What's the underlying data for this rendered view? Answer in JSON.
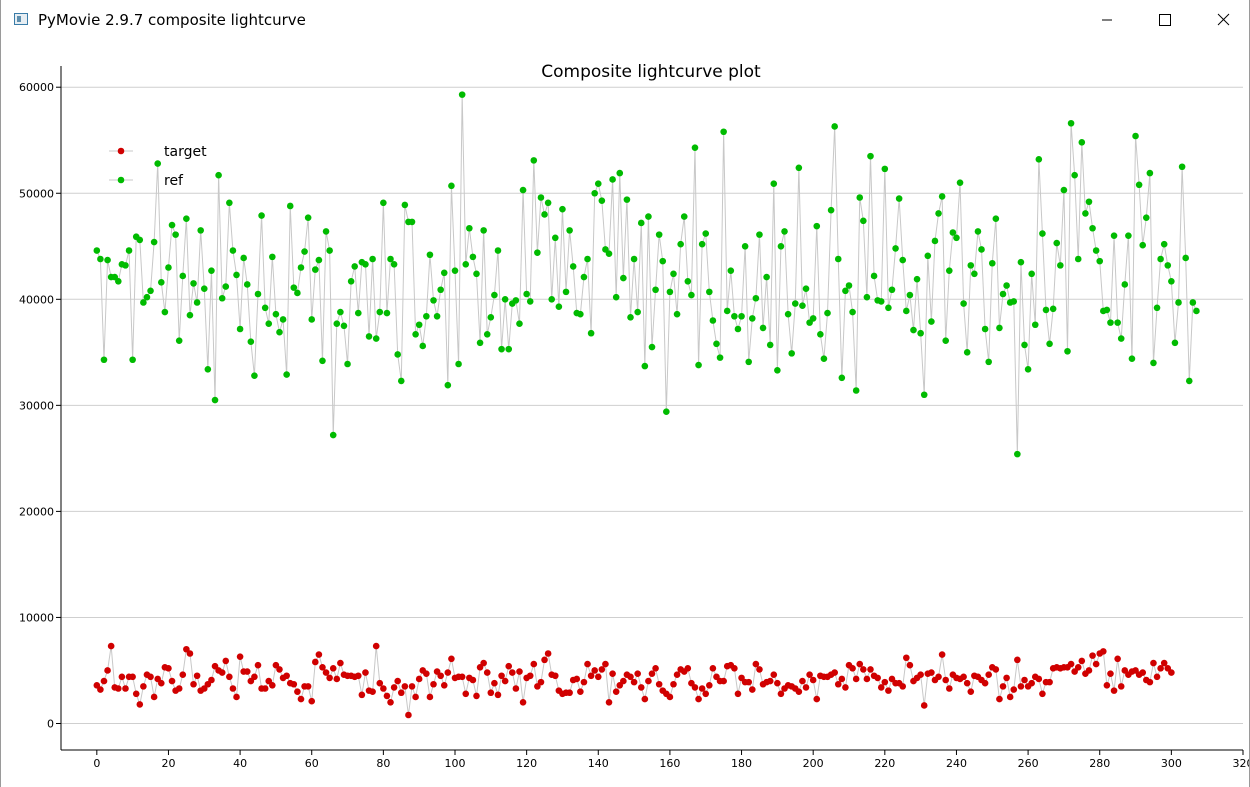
{
  "window": {
    "title": "PyMovie 2.9.7 composite lightcurve",
    "icons": {
      "app": "app-window-icon",
      "minimize": "minimize-icon",
      "maximize": "maximize-icon",
      "close": "close-icon"
    }
  },
  "chart_data": {
    "type": "scatter",
    "title": "Composite lightcurve plot",
    "xlabel": "",
    "ylabel": "",
    "xlim": [
      -10,
      320
    ],
    "ylim": [
      -2500,
      62000
    ],
    "x_ticks": [
      0,
      20,
      40,
      60,
      80,
      100,
      120,
      140,
      160,
      180,
      200,
      220,
      240,
      260,
      280,
      300,
      320
    ],
    "y_ticks": [
      0,
      10000,
      20000,
      30000,
      40000,
      50000,
      60000
    ],
    "grid": "horizontal",
    "legend_position": "top-left",
    "connect_points": true,
    "line_color": "#c8c8c8",
    "series": [
      {
        "name": "target",
        "color": "#d00000",
        "values": [
          3600,
          3200,
          4000,
          5000,
          7300,
          3400,
          3300,
          4400,
          3300,
          4400,
          4400,
          2800,
          1800,
          3500,
          4600,
          4400,
          2500,
          4200,
          3800,
          5300,
          5200,
          4000,
          3100,
          3300,
          4600,
          7000,
          6600,
          3700,
          4500,
          3100,
          3300,
          3700,
          4100,
          5400,
          5000,
          4800,
          5900,
          4400,
          3300,
          2500,
          6300,
          4900,
          4900,
          4000,
          4400,
          5500,
          3300,
          3300,
          4000,
          3600,
          5500,
          5100,
          4300,
          4500,
          3800,
          3700,
          3000,
          2300,
          3500,
          3500,
          2100,
          5800,
          6500,
          5300,
          4800,
          4300,
          5200,
          4200,
          5700,
          4600,
          4500,
          4500,
          4400,
          4500,
          2700,
          4800,
          3100,
          3000,
          7300,
          3800,
          3300,
          2600,
          2000,
          3400,
          4000,
          2900,
          3500,
          800,
          3500,
          2500,
          4200,
          5000,
          4700,
          2500,
          3700,
          4900,
          4500,
          3600,
          4800,
          6100,
          4300,
          4400,
          4400,
          2800,
          4300,
          4100,
          2600,
          5300,
          5700,
          4800,
          2900,
          3800,
          2700,
          4500,
          4000,
          5400,
          4800,
          3300,
          4900,
          2000,
          4300,
          4500,
          5600,
          3500,
          3900,
          6000,
          6600,
          4600,
          4500,
          3100,
          2800,
          2900,
          2900,
          4100,
          4200,
          3000,
          3900,
          5600,
          4500,
          5000,
          4400,
          5100,
          5600,
          2000,
          4700,
          3000,
          3600,
          4000,
          4600,
          4400,
          3900,
          4700,
          3400,
          2300,
          4000,
          4700,
          5200,
          3700,
          3100,
          2800,
          2500,
          3700,
          4600,
          5100,
          4900,
          5200,
          3800,
          3400,
          2300,
          3300,
          2800,
          3600,
          5200,
          4400,
          4000,
          4000,
          5400,
          5500,
          5200,
          2800,
          4300,
          3900,
          3900,
          3200,
          5600,
          5100,
          3700,
          3900,
          4000,
          4600,
          3800,
          2800,
          3300,
          3600,
          3500,
          3300,
          3000,
          4000,
          3400,
          4600,
          4100,
          2300,
          4500,
          4400,
          4400,
          4600,
          4800,
          3700,
          4200,
          3400,
          5500,
          5200,
          4200,
          5600,
          5100,
          4200,
          5100,
          4500,
          4300,
          3400,
          3900,
          3100,
          4200,
          3800,
          3800,
          3500,
          6200,
          5500,
          4000,
          4300,
          4600,
          1700,
          4700,
          4800,
          4100,
          4400,
          6500,
          4100,
          3300,
          4600,
          4300,
          4200,
          4400,
          3800,
          3000,
          4500,
          4400,
          4100,
          3800,
          4600,
          5300,
          5100,
          2300,
          3500,
          4300,
          2500,
          3200,
          6000,
          3500,
          4100,
          3500,
          3800,
          4400,
          4200,
          2800,
          3900,
          3900,
          5200,
          5300,
          5200,
          5300,
          5300,
          5600,
          4900,
          5300,
          5900,
          4700,
          5000,
          6400,
          5600,
          6600,
          6800,
          3600,
          4700,
          3100,
          6100,
          3500,
          5000,
          4600,
          4900,
          5000,
          4600,
          4800,
          4100,
          3900,
          5700,
          4400,
          5200,
          5700,
          5200,
          4800
        ]
      },
      {
        "name": "ref",
        "color": "#00bb00",
        "values": [
          44600,
          43800,
          34300,
          43700,
          42100,
          42100,
          41700,
          43300,
          43200,
          44600,
          34300,
          45900,
          45600,
          39700,
          40200,
          40800,
          45400,
          52800,
          41600,
          38800,
          43000,
          47000,
          46100,
          36100,
          42200,
          47600,
          38500,
          41500,
          39700,
          46500,
          41000,
          33400,
          42700,
          30500,
          51700,
          40100,
          41200,
          49100,
          44600,
          42300,
          37200,
          43900,
          41400,
          36000,
          32800,
          40500,
          47900,
          39200,
          37700,
          44000,
          38600,
          36900,
          38100,
          32900,
          48800,
          41100,
          40600,
          43000,
          44500,
          47700,
          38100,
          42800,
          43700,
          34200,
          46400,
          44600,
          27200,
          37700,
          38800,
          37500,
          33900,
          41700,
          43100,
          38700,
          43500,
          43300,
          36500,
          43800,
          36300,
          38800,
          49100,
          38700,
          43800,
          43300,
          34800,
          32300,
          48900,
          47300,
          47300,
          36700,
          37600,
          35600,
          38400,
          44200,
          39900,
          38400,
          40900,
          42500,
          31900,
          50700,
          42700,
          33900,
          59300,
          43300,
          46700,
          44000,
          42400,
          35900,
          46500,
          36700,
          38300,
          40400,
          44600,
          35300,
          40000,
          35300,
          39600,
          39900,
          37700,
          50300,
          40500,
          39800,
          53100,
          44400,
          49600,
          48000,
          49100,
          40000,
          45800,
          39300,
          48500,
          40700,
          46500,
          43100,
          38700,
          38600,
          42100,
          43800,
          36800,
          50000,
          50900,
          49300,
          44700,
          44300,
          51300,
          40200,
          51900,
          42000,
          49400,
          38300,
          43800,
          38800,
          47200,
          33700,
          47800,
          35500,
          40900,
          46100,
          43600,
          29400,
          40700,
          42400,
          38600,
          45200,
          47800,
          41700,
          40400,
          54300,
          33800,
          45200,
          46200,
          40700,
          38000,
          35800,
          34500,
          55800,
          38900,
          42700,
          38400,
          37200,
          38400,
          45000,
          34100,
          38200,
          40100,
          46100,
          37300,
          42100,
          35700,
          50900,
          33300,
          45000,
          46400,
          38600,
          34900,
          39600,
          52400,
          39400,
          41000,
          37800,
          38200,
          46900,
          36700,
          34400,
          38700,
          48400,
          56300,
          43800,
          32600,
          40800,
          41300,
          38800,
          31400,
          49600,
          47400,
          40200,
          53500,
          42200,
          39900,
          39800,
          52300,
          39200,
          40900,
          44800,
          49500,
          43700,
          38900,
          40400,
          37100,
          41900,
          36800,
          31000,
          44100,
          37900,
          45500,
          48100,
          49700,
          36100,
          42700,
          46300,
          45800,
          51000,
          39600,
          35000,
          43200,
          42400,
          46400,
          44700,
          37200,
          34100,
          43400,
          47600,
          37300,
          40500,
          41300,
          39700,
          39800,
          25400,
          43500,
          35700,
          33400,
          42400,
          37600,
          53200,
          46200,
          39000,
          35800,
          39100,
          45300,
          43200,
          50300,
          35100,
          56600,
          51700,
          43800,
          54800,
          48100,
          49200,
          46700,
          44600,
          43600,
          38900,
          39000,
          37800,
          46000,
          37800,
          36300,
          41400,
          46000,
          34400,
          55400,
          50800,
          45100,
          47700,
          51900,
          34000,
          39200,
          43800,
          45200,
          43200,
          41700,
          35900,
          39700,
          52500,
          43900,
          32300,
          39700,
          38900
        ]
      }
    ]
  }
}
